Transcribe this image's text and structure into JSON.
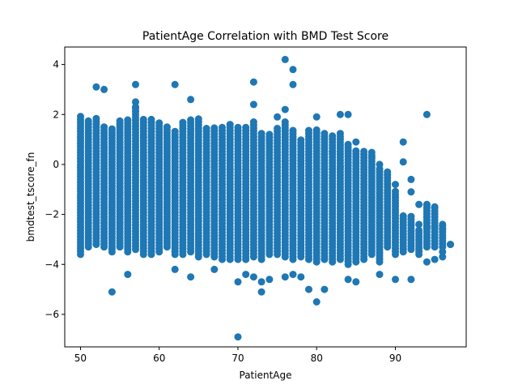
{
  "chart_data": {
    "type": "scatter",
    "title": "PatientAge Correlation with BMD Test Score",
    "xlabel": "PatientAge",
    "ylabel": "bmdtest_tscore_fn",
    "xlim": [
      48,
      99
    ],
    "ylim": [
      -7.3,
      4.7
    ],
    "x_ticks": [
      50,
      60,
      70,
      80,
      90
    ],
    "y_ticks": [
      -6,
      -4,
      -2,
      0,
      2,
      4
    ],
    "marker_color": "#1f77b4",
    "grid": false,
    "legend": "none",
    "ages": [
      50,
      51,
      52,
      53,
      54,
      55,
      56,
      57,
      58,
      59,
      60,
      61,
      62,
      63,
      64,
      65,
      66,
      67,
      68,
      69,
      70,
      71,
      72,
      73,
      74,
      75,
      76,
      77,
      78,
      79,
      80,
      81,
      82,
      83,
      84,
      85,
      86,
      87,
      88,
      89,
      90,
      91,
      92,
      93,
      94,
      95,
      96,
      97
    ],
    "dense_ranges": [
      [
        -3.6,
        2.0
      ],
      [
        -3.3,
        1.8
      ],
      [
        -3.2,
        1.9
      ],
      [
        -3.3,
        1.6
      ],
      [
        -3.5,
        1.5
      ],
      [
        -3.3,
        1.8
      ],
      [
        -3.5,
        1.8
      ],
      [
        -3.4,
        2.3
      ],
      [
        -3.6,
        1.8
      ],
      [
        -3.6,
        1.9
      ],
      [
        -3.5,
        1.7
      ],
      [
        -3.3,
        1.5
      ],
      [
        -3.6,
        1.4
      ],
      [
        -3.6,
        1.7
      ],
      [
        -3.5,
        1.8
      ],
      [
        -3.7,
        1.9
      ],
      [
        -3.6,
        1.5
      ],
      [
        -3.7,
        1.5
      ],
      [
        -3.8,
        1.5
      ],
      [
        -3.8,
        1.6
      ],
      [
        -3.8,
        1.5
      ],
      [
        -3.8,
        1.5
      ],
      [
        -3.7,
        1.8
      ],
      [
        -3.8,
        1.3
      ],
      [
        -3.6,
        1.3
      ],
      [
        -3.6,
        1.5
      ],
      [
        -3.7,
        1.8
      ],
      [
        -3.8,
        1.4
      ],
      [
        -3.7,
        1.0
      ],
      [
        -3.8,
        1.4
      ],
      [
        -3.9,
        1.4
      ],
      [
        -3.8,
        1.3
      ],
      [
        -3.9,
        1.2
      ],
      [
        -3.8,
        1.3
      ],
      [
        -4.0,
        0.9
      ],
      [
        -3.9,
        0.6
      ],
      [
        -3.8,
        0.6
      ],
      [
        -3.6,
        0.5
      ],
      [
        -3.9,
        -0.1
      ],
      [
        -3.3,
        -0.2
      ],
      [
        -3.6,
        -1.0
      ],
      [
        -3.5,
        -2.0
      ],
      [
        -3.4,
        -2.0
      ],
      [
        -3.6,
        -2.6
      ],
      [
        -3.3,
        -1.6
      ],
      [
        -3.3,
        -1.7
      ],
      [
        -3.3,
        -2.4
      ],
      [
        -3.2,
        -3.2
      ]
    ],
    "points": [
      [
        52,
        3.1
      ],
      [
        53,
        3.0
      ],
      [
        57,
        3.2
      ],
      [
        57,
        2.5
      ],
      [
        57,
        2.3
      ],
      [
        62,
        3.2
      ],
      [
        64,
        2.6
      ],
      [
        72,
        3.3
      ],
      [
        72,
        2.4
      ],
      [
        76,
        4.2
      ],
      [
        77,
        3.8
      ],
      [
        77,
        3.2
      ],
      [
        76,
        2.2
      ],
      [
        75,
        1.9
      ],
      [
        80,
        1.9
      ],
      [
        83,
        2.0
      ],
      [
        84,
        2.0
      ],
      [
        94,
        2.0
      ],
      [
        91,
        0.9
      ],
      [
        91,
        0.1
      ],
      [
        54,
        -5.1
      ],
      [
        56,
        -4.4
      ],
      [
        62,
        -4.2
      ],
      [
        64,
        -4.5
      ],
      [
        67,
        -4.2
      ],
      [
        70,
        -4.7
      ],
      [
        70,
        -6.9
      ],
      [
        71,
        -4.4
      ],
      [
        72,
        -4.5
      ],
      [
        73,
        -4.7
      ],
      [
        73,
        -5.1
      ],
      [
        74,
        -4.6
      ],
      [
        76,
        -4.5
      ],
      [
        77,
        -4.4
      ],
      [
        78,
        -4.5
      ],
      [
        79,
        -5.0
      ],
      [
        80,
        -5.5
      ],
      [
        81,
        -5.0
      ],
      [
        84,
        -4.6
      ],
      [
        85,
        -4.7
      ],
      [
        88,
        -4.4
      ],
      [
        90,
        -4.6
      ],
      [
        92,
        -4.6
      ],
      [
        94,
        -3.9
      ],
      [
        95,
        -3.8
      ],
      [
        96,
        -3.7
      ],
      [
        96,
        -3.5
      ],
      [
        97,
        -3.2
      ],
      [
        96,
        -2.6
      ],
      [
        96,
        -2.4
      ],
      [
        95,
        -2.5
      ],
      [
        95,
        -1.7
      ],
      [
        94,
        -1.6
      ],
      [
        94,
        -2.5
      ],
      [
        93,
        -1.6
      ],
      [
        93,
        -2.4
      ],
      [
        92,
        -0.6
      ],
      [
        92,
        -1.1
      ],
      [
        90,
        -0.8
      ],
      [
        89,
        -0.4
      ],
      [
        88,
        0.0
      ],
      [
        87,
        0.3
      ],
      [
        85,
        0.9
      ],
      [
        82,
        0.5
      ],
      [
        83,
        -0.1
      ]
    ]
  }
}
